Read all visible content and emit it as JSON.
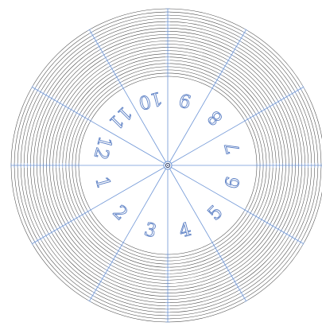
{
  "diagram": {
    "segments": [
      "1",
      "2",
      "3",
      "4",
      "5",
      "6",
      "7",
      "8",
      "9",
      "10",
      "11",
      "12"
    ],
    "ring_count": 22,
    "colors": {
      "rings": "#4a4a4a",
      "spokes": "#6f96d6",
      "numerals_outline": "#5b7fc4",
      "background": "#ffffff"
    }
  }
}
